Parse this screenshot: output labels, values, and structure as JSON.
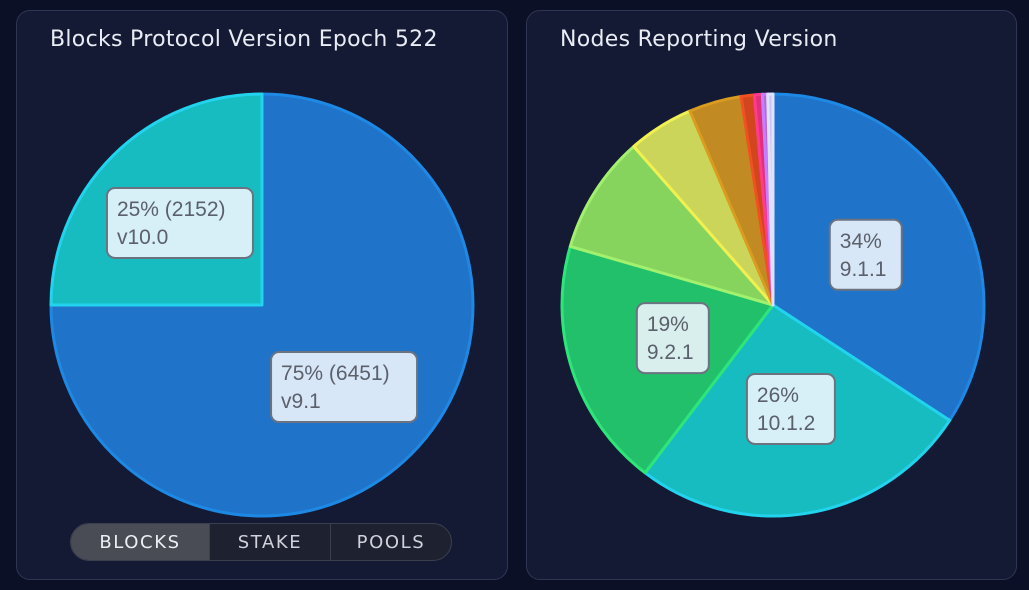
{
  "left_panel": {
    "title": "Blocks Protocol Version Epoch 522",
    "toggle": {
      "options": [
        "BLOCKS",
        "STAKE",
        "POOLS"
      ],
      "selected": "BLOCKS"
    }
  },
  "right_panel": {
    "title": "Nodes Reporting Version"
  },
  "chart_data": [
    {
      "type": "pie",
      "title": "Blocks Protocol Version Epoch 522",
      "start_angle_deg": 0,
      "direction": "clockwise",
      "slices": [
        {
          "label": "v9.1",
          "value": 6451,
          "percent": 75,
          "color": "#1f73c9",
          "stroke": "#1e88e5",
          "label_line1": "75% (6451)",
          "label_line2": "v9.1"
        },
        {
          "label": "v10.0",
          "value": 2152,
          "percent": 25,
          "color": "#17bcc0",
          "stroke": "#22d3ee",
          "label_line1": "25% (2152)",
          "label_line2": "v10.0"
        }
      ]
    },
    {
      "type": "pie",
      "title": "Nodes Reporting Version",
      "start_angle_deg": 0,
      "direction": "clockwise",
      "slices": [
        {
          "label": "9.1.1",
          "percent": 34,
          "color": "#1f73c9",
          "stroke": "#1e88e5",
          "label_line1": "34%",
          "label_line2": "9.1.1"
        },
        {
          "label": "10.1.2",
          "percent": 26,
          "color": "#17bcc0",
          "stroke": "#22d3ee",
          "label_line1": "26%",
          "label_line2": "10.1.2"
        },
        {
          "label": "9.2.1",
          "percent": 19,
          "color": "#22c06a",
          "stroke": "#2ee57a",
          "label_line1": "19%",
          "label_line2": "9.2.1"
        },
        {
          "label": "",
          "percent": 9,
          "color": "#86d35e",
          "stroke": "#a3f06e"
        },
        {
          "label": "",
          "percent": 5,
          "color": "#cbd55a",
          "stroke": "#f0f050"
        },
        {
          "label": "",
          "percent": 4,
          "color": "#c28a22",
          "stroke": "#d99b20"
        },
        {
          "label": "",
          "percent": 1,
          "color": "#d2461e",
          "stroke": "#f05022"
        },
        {
          "label": "",
          "percent": 0.6,
          "color": "#e0307a",
          "stroke": "#ff3b8e"
        },
        {
          "label": "",
          "percent": 0.4,
          "color": "#b36ad8",
          "stroke": "#c77dff"
        },
        {
          "label": "",
          "percent": 0.4,
          "color": "#c7c7ef",
          "stroke": "#e0e0ff"
        }
      ]
    }
  ]
}
